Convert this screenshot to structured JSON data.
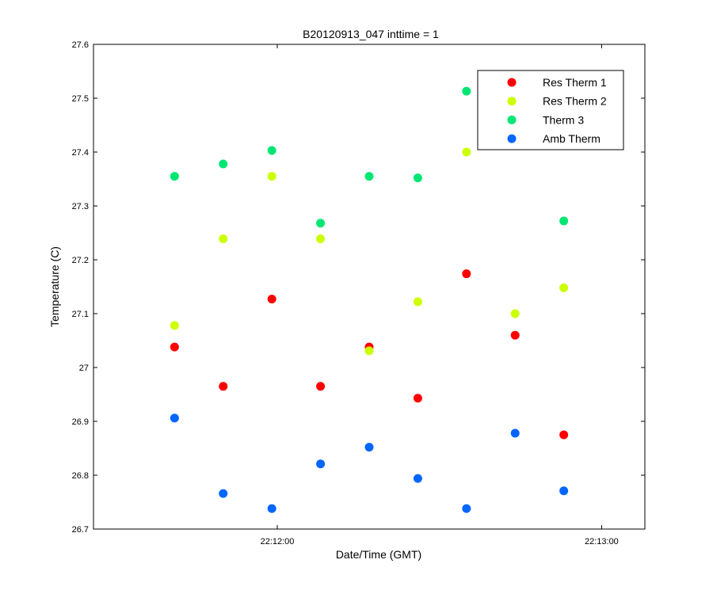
{
  "chart_data": {
    "type": "scatter",
    "title": "B20120913_047 inttime = 1",
    "xlabel": "Date/Time (GMT)",
    "ylabel": "Temperature (C)",
    "xlim": [
      "22:11:26",
      "22:13:08"
    ],
    "ylim": [
      26.7,
      27.6
    ],
    "grid": false,
    "legend_position": "top-right",
    "x_ticks": [
      {
        "value": "22:12:00",
        "label": "22:12:00"
      },
      {
        "value": "22:13:00",
        "label": "22:13:00"
      }
    ],
    "y_ticks": [
      {
        "value": 26.7,
        "label": "26.7"
      },
      {
        "value": 26.8,
        "label": "26.8"
      },
      {
        "value": 26.9,
        "label": "26.9"
      },
      {
        "value": 27.0,
        "label": "27"
      },
      {
        "value": 27.1,
        "label": "27.1"
      },
      {
        "value": 27.2,
        "label": "27.2"
      },
      {
        "value": 27.3,
        "label": "27.3"
      },
      {
        "value": 27.4,
        "label": "27.4"
      },
      {
        "value": 27.5,
        "label": "27.5"
      },
      {
        "value": 27.6,
        "label": "27.6"
      }
    ],
    "x": [
      "22:11:41",
      "22:11:50",
      "22:11:59",
      "22:12:08",
      "22:12:17",
      "22:12:26",
      "22:12:35",
      "22:12:44",
      "22:12:53"
    ],
    "series": [
      {
        "name": "Res Therm 1",
        "color": "#ff0000",
        "values": [
          27.038,
          26.965,
          27.127,
          26.965,
          27.038,
          26.943,
          27.174,
          27.06,
          26.875
        ]
      },
      {
        "name": "Res Therm 2",
        "color": "#ccff00",
        "values": [
          27.078,
          27.239,
          27.355,
          27.239,
          27.031,
          27.122,
          27.4,
          27.1,
          27.148
        ]
      },
      {
        "name": "Therm 3",
        "color": "#00e673",
        "values": [
          27.355,
          27.378,
          27.403,
          27.268,
          27.355,
          27.352,
          27.513,
          null,
          27.272
        ]
      },
      {
        "name": "Amb Therm",
        "color": "#0066ff",
        "values": [
          26.906,
          26.766,
          26.738,
          26.821,
          26.852,
          26.794,
          26.738,
          26.878,
          26.771
        ]
      }
    ]
  }
}
